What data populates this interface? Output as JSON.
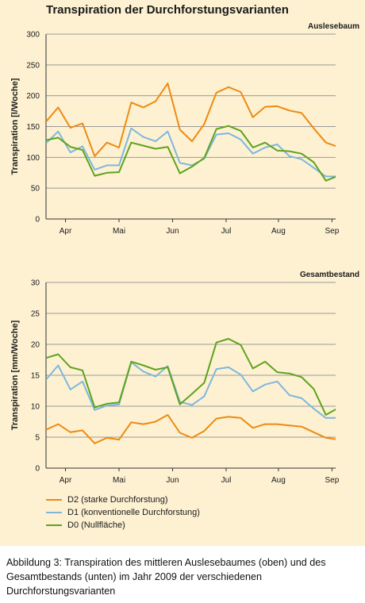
{
  "figure": {
    "title": "Transpiration der Durchforstungsvarianten",
    "background": "#fdf1d2",
    "grid_color": "#9a9a9a"
  },
  "legend": {
    "items": [
      {
        "label": "D2 (starke Durchforstung)",
        "color": "#ee8a12"
      },
      {
        "label": "D1 (konventionelle Durchforstung)",
        "color": "#7fb7dd"
      },
      {
        "label": "D0 (Nullfläche)",
        "color": "#5ea31e"
      }
    ]
  },
  "caption": "Abbildung 3: Transpiration des mittleren Auslesebaumes (oben) und des Gesamtbestands (unten) im Jahr 2009 der verschiedenen Durchforstungsvarianten",
  "chart_data": [
    {
      "type": "line",
      "panel_label": "Auslesebaum",
      "title": "",
      "xlabel": "",
      "ylabel": "Transpiration [l/Woche]",
      "ylim": [
        0,
        300
      ],
      "yticks": [
        0,
        50,
        100,
        150,
        200,
        250,
        300
      ],
      "xlim": [
        0,
        23.8
      ],
      "month_ticks": [
        {
          "label": "Apr",
          "x": 1.6
        },
        {
          "label": "Mai",
          "x": 6.0
        },
        {
          "label": "Jun",
          "x": 10.4
        },
        {
          "label": "Jul",
          "x": 14.8
        },
        {
          "label": "Aug",
          "x": 19.1
        },
        {
          "label": "Sep",
          "x": 23.5
        }
      ],
      "grid": true,
      "x": [
        0,
        1,
        2,
        3,
        4,
        5,
        6,
        7,
        8,
        9,
        10,
        11,
        12,
        13,
        14,
        15,
        16,
        17,
        18,
        19,
        20,
        21,
        22,
        23,
        24,
        25
      ],
      "series": [
        {
          "name": "D2 (starke Durchforstung)",
          "color": "#ee8a12",
          "values": [
            158,
            181,
            148,
            155,
            102,
            124,
            116,
            189,
            181,
            191,
            220,
            145,
            126,
            154,
            205,
            214,
            206,
            165,
            182,
            183,
            176,
            172,
            147,
            124,
            117,
            129
          ]
        },
        {
          "name": "D1 (konventionelle Durchforstung)",
          "color": "#7fb7dd",
          "values": [
            123,
            142,
            108,
            118,
            80,
            87,
            87,
            147,
            133,
            126,
            142,
            91,
            87,
            98,
            137,
            139,
            129,
            106,
            116,
            121,
            102,
            97,
            83,
            69,
            69,
            73
          ]
        },
        {
          "name": "D0 (Nullfläche)",
          "color": "#5ea31e",
          "values": [
            128,
            132,
            117,
            112,
            70,
            75,
            76,
            124,
            119,
            114,
            117,
            74,
            85,
            99,
            146,
            151,
            143,
            116,
            124,
            111,
            110,
            106,
            92,
            62,
            70,
            65
          ]
        }
      ]
    },
    {
      "type": "line",
      "panel_label": "Gesamtbestand",
      "title": "",
      "xlabel": "",
      "ylabel": "Transpiration [mm/Woche]",
      "ylim": [
        0,
        30
      ],
      "yticks": [
        0,
        5,
        10,
        15,
        20,
        25,
        30
      ],
      "xlim": [
        0,
        23.8
      ],
      "month_ticks": [
        {
          "label": "Apr",
          "x": 1.6
        },
        {
          "label": "Mai",
          "x": 6.0
        },
        {
          "label": "Jun",
          "x": 10.4
        },
        {
          "label": "Jul",
          "x": 14.8
        },
        {
          "label": "Aug",
          "x": 19.1
        },
        {
          "label": "Sep",
          "x": 23.5
        }
      ],
      "grid": true,
      "x": [
        0,
        1,
        2,
        3,
        4,
        5,
        6,
        7,
        8,
        9,
        10,
        11,
        12,
        13,
        14,
        15,
        16,
        17,
        18,
        19,
        20,
        21,
        22,
        23,
        24,
        25
      ],
      "series": [
        {
          "name": "D2 (starke Durchforstung)",
          "color": "#ee8a12",
          "values": [
            6.2,
            7.1,
            5.8,
            6.1,
            4.0,
            4.9,
            4.6,
            7.4,
            7.1,
            7.5,
            8.6,
            5.7,
            4.9,
            6.0,
            8.0,
            8.3,
            8.1,
            6.5,
            7.1,
            7.1,
            6.9,
            6.7,
            5.8,
            4.9,
            4.6,
            5.0
          ]
        },
        {
          "name": "D1 (konventionelle Durchforstung)",
          "color": "#7fb7dd",
          "values": [
            14.3,
            16.6,
            12.7,
            14.0,
            9.4,
            10.1,
            10.3,
            17.1,
            15.6,
            14.8,
            16.5,
            10.7,
            10.2,
            11.6,
            16.0,
            16.3,
            15.1,
            12.4,
            13.5,
            14.0,
            11.8,
            11.3,
            9.6,
            8.1,
            8.1,
            8.6
          ]
        },
        {
          "name": "D0 (Nullfläche)",
          "color": "#5ea31e",
          "values": [
            17.8,
            18.4,
            16.3,
            15.8,
            9.8,
            10.4,
            10.6,
            17.2,
            16.6,
            15.9,
            16.3,
            10.3,
            12.0,
            13.8,
            20.3,
            20.9,
            19.9,
            16.1,
            17.2,
            15.5,
            15.3,
            14.7,
            12.8,
            8.6,
            9.7,
            9.1
          ]
        }
      ]
    }
  ]
}
